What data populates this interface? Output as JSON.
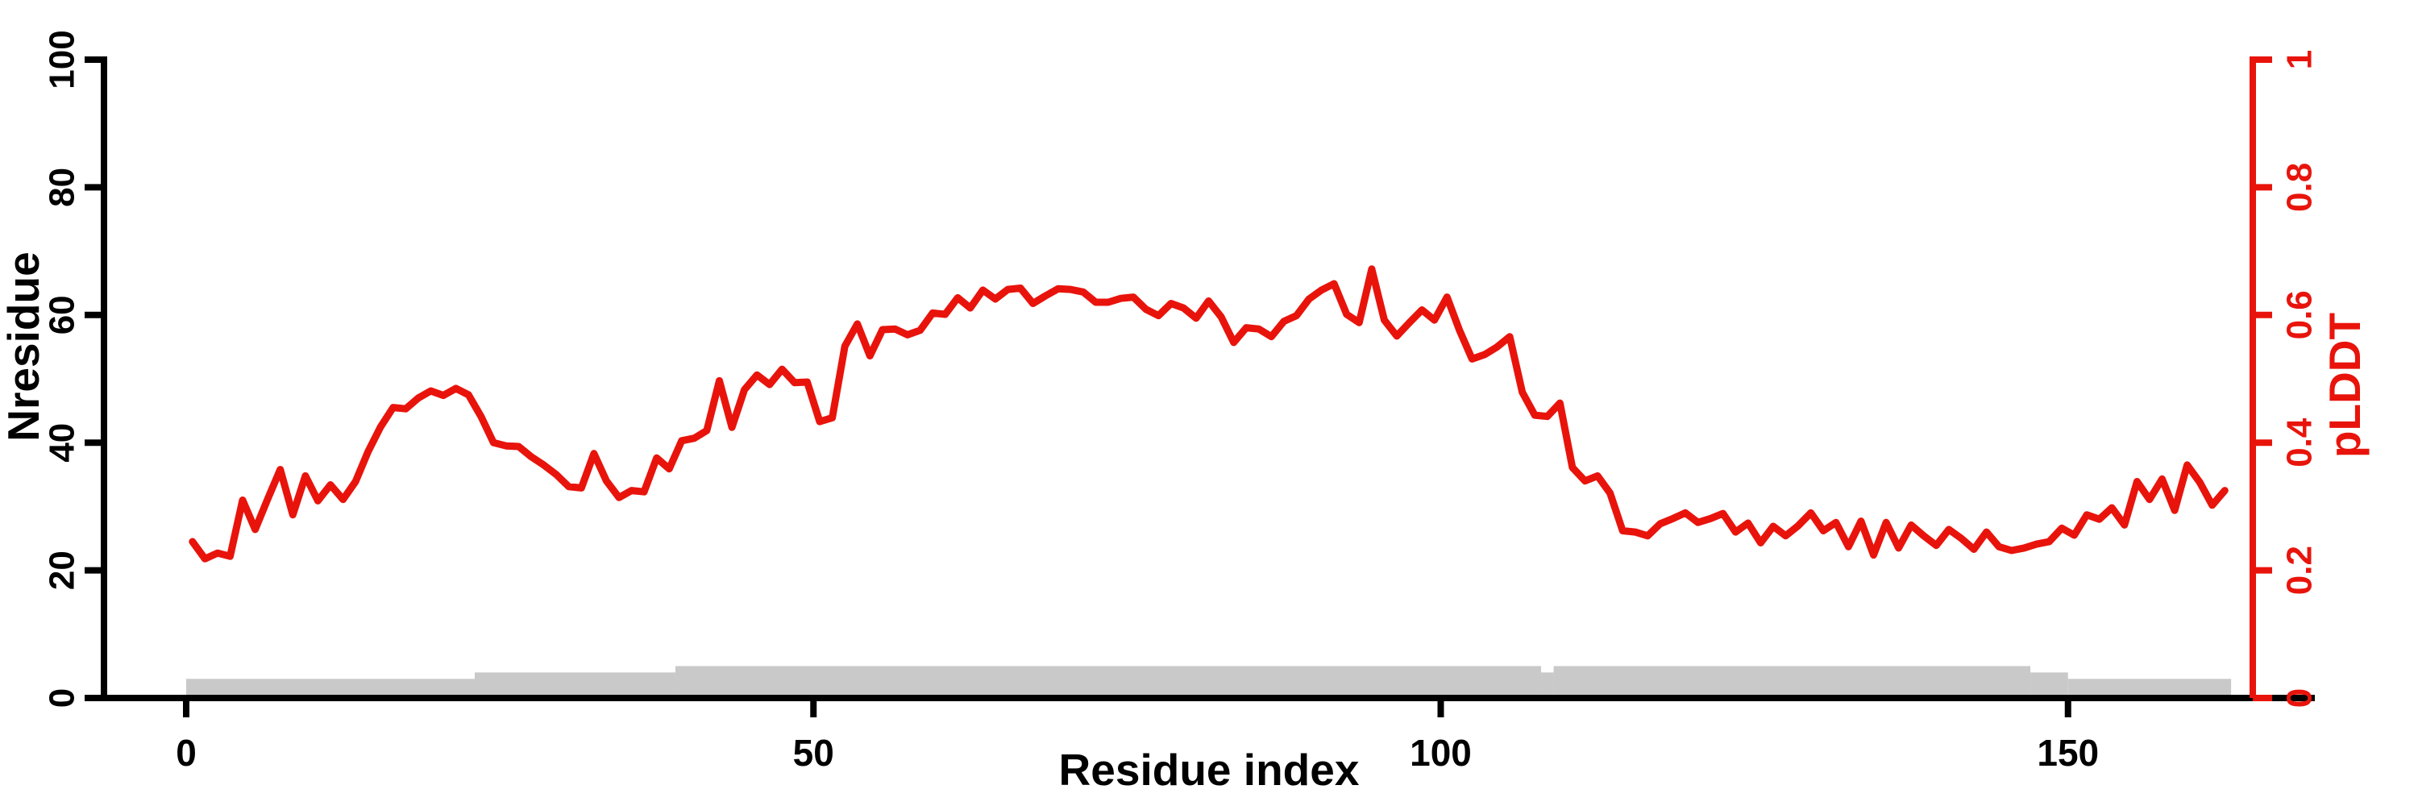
{
  "chart_data": {
    "type": "line",
    "title": "",
    "x_axis": {
      "label": "Residue index",
      "tick_values": [
        0,
        50,
        100,
        150
      ],
      "tick_labels": [
        "0",
        "50",
        "100",
        "150"
      ],
      "range": [
        0,
        163
      ]
    },
    "y_left_axis": {
      "label": "Nresidue",
      "tick_values": [
        0,
        20,
        40,
        60,
        80,
        100
      ],
      "tick_labels": [
        "0",
        "20",
        "40",
        "60",
        "80",
        "100"
      ],
      "range": [
        0,
        100
      ],
      "color": "#000000"
    },
    "y_right_axis": {
      "label": "pLDDT",
      "tick_values": [
        0,
        0.2,
        0.4,
        0.6,
        0.8,
        1
      ],
      "tick_labels": [
        "0",
        "0.2",
        "0.4",
        "0.6",
        "0.8",
        "1"
      ],
      "range": [
        0,
        1
      ],
      "color": "#e8140c"
    },
    "grid": false,
    "legend": "none",
    "series": [
      {
        "name": "pLDDT",
        "type": "line",
        "axis": "right",
        "color": "#e8140c",
        "x_start": 0,
        "x_step": 1,
        "values": [
          0.245,
          0.218,
          0.227,
          0.222,
          0.31,
          0.264,
          0.312,
          0.358,
          0.287,
          0.348,
          0.309,
          0.334,
          0.311,
          0.339,
          0.386,
          0.425,
          0.455,
          0.453,
          0.47,
          0.481,
          0.474,
          0.485,
          0.475,
          0.441,
          0.4,
          0.395,
          0.394,
          0.378,
          0.365,
          0.35,
          0.331,
          0.329,
          0.383,
          0.34,
          0.314,
          0.325,
          0.323,
          0.376,
          0.359,
          0.403,
          0.407,
          0.419,
          0.497,
          0.424,
          0.483,
          0.506,
          0.491,
          0.515,
          0.494,
          0.495,
          0.433,
          0.439,
          0.551,
          0.586,
          0.536,
          0.577,
          0.578,
          0.569,
          0.576,
          0.603,
          0.601,
          0.627,
          0.611,
          0.639,
          0.625,
          0.64,
          0.642,
          0.618,
          0.63,
          0.641,
          0.64,
          0.636,
          0.62,
          0.62,
          0.626,
          0.628,
          0.609,
          0.599,
          0.618,
          0.611,
          0.595,
          0.622,
          0.597,
          0.557,
          0.58,
          0.578,
          0.566,
          0.59,
          0.599,
          0.625,
          0.639,
          0.649,
          0.601,
          0.588,
          0.672,
          0.592,
          0.567,
          0.588,
          0.608,
          0.592,
          0.628,
          0.576,
          0.531,
          0.538,
          0.55,
          0.566,
          0.479,
          0.443,
          0.441,
          0.462,
          0.361,
          0.34,
          0.348,
          0.321,
          0.262,
          0.26,
          0.254,
          0.273,
          0.281,
          0.29,
          0.275,
          0.281,
          0.289,
          0.26,
          0.274,
          0.243,
          0.269,
          0.254,
          0.27,
          0.29,
          0.262,
          0.275,
          0.237,
          0.277,
          0.224,
          0.275,
          0.235,
          0.271,
          0.254,
          0.239,
          0.264,
          0.25,
          0.233,
          0.26,
          0.237,
          0.231,
          0.235,
          0.241,
          0.245,
          0.266,
          0.255,
          0.287,
          0.28,
          0.298,
          0.271,
          0.339,
          0.311,
          0.343,
          0.294,
          0.365,
          0.338,
          0.302,
          0.325
        ]
      },
      {
        "name": "Nresidue",
        "type": "step-area",
        "axis": "left",
        "color": "#c9c9c9",
        "segments": [
          {
            "start": 0,
            "end": 22,
            "value": 3
          },
          {
            "start": 23,
            "end": 38,
            "value": 4
          },
          {
            "start": 39,
            "end": 107,
            "value": 5
          },
          {
            "start": 108,
            "end": 108,
            "value": 4
          },
          {
            "start": 109,
            "end": 146,
            "value": 5
          },
          {
            "start": 147,
            "end": 149,
            "value": 4
          },
          {
            "start": 150,
            "end": 162,
            "value": 3
          }
        ]
      }
    ],
    "n_points": 163
  },
  "colors": {
    "background": "#ffffff",
    "axis_black": "#000000",
    "accent_red": "#e8140c",
    "bar_gray": "#c9c9c9"
  }
}
